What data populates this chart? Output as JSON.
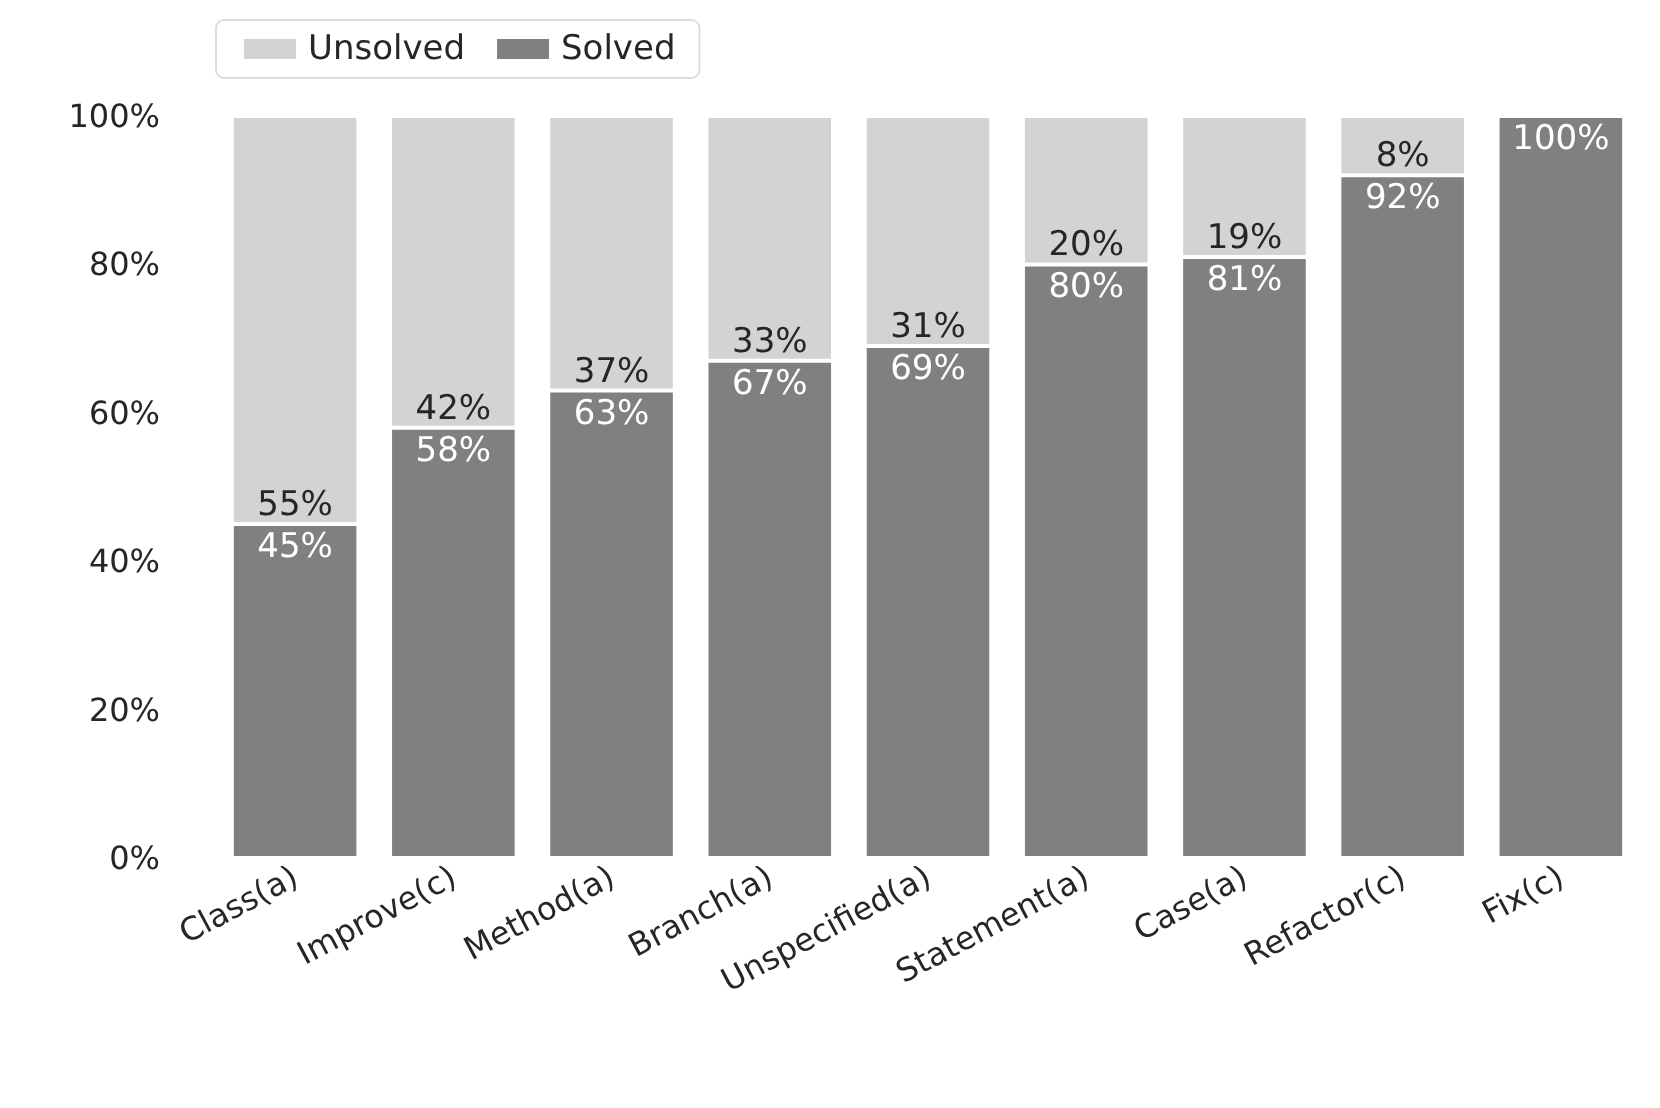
{
  "chart_data": {
    "type": "bar",
    "stacked": true,
    "categories": [
      "Class(a)",
      "Improve(c)",
      "Method(a)",
      "Branch(a)",
      "Unspecified(a)",
      "Statement(a)",
      "Case(a)",
      "Refactor(c)",
      "Fix(c)"
    ],
    "series": [
      {
        "name": "Solved",
        "color": "#808080",
        "values": [
          45,
          58,
          63,
          67,
          69,
          80,
          81,
          92,
          100
        ],
        "value_labels": [
          "45%",
          "58%",
          "63%",
          "67%",
          "69%",
          "80%",
          "81%",
          "92%",
          "100%"
        ]
      },
      {
        "name": "Unsolved",
        "color": "#d3d3d3",
        "values": [
          55,
          42,
          37,
          33,
          31,
          20,
          19,
          8,
          null
        ],
        "value_labels": [
          "55%",
          "42%",
          "37%",
          "33%",
          "31%",
          "20%",
          "19%",
          "8%",
          null
        ]
      }
    ],
    "ylim": [
      0,
      100
    ],
    "yticks": [
      {
        "value": 0,
        "label": "0%"
      },
      {
        "value": 20,
        "label": "20%"
      },
      {
        "value": 40,
        "label": "40%"
      },
      {
        "value": 60,
        "label": "60%"
      },
      {
        "value": 80,
        "label": "80%"
      },
      {
        "value": 100,
        "label": "100%"
      }
    ],
    "grid": false,
    "legend": "top left"
  }
}
